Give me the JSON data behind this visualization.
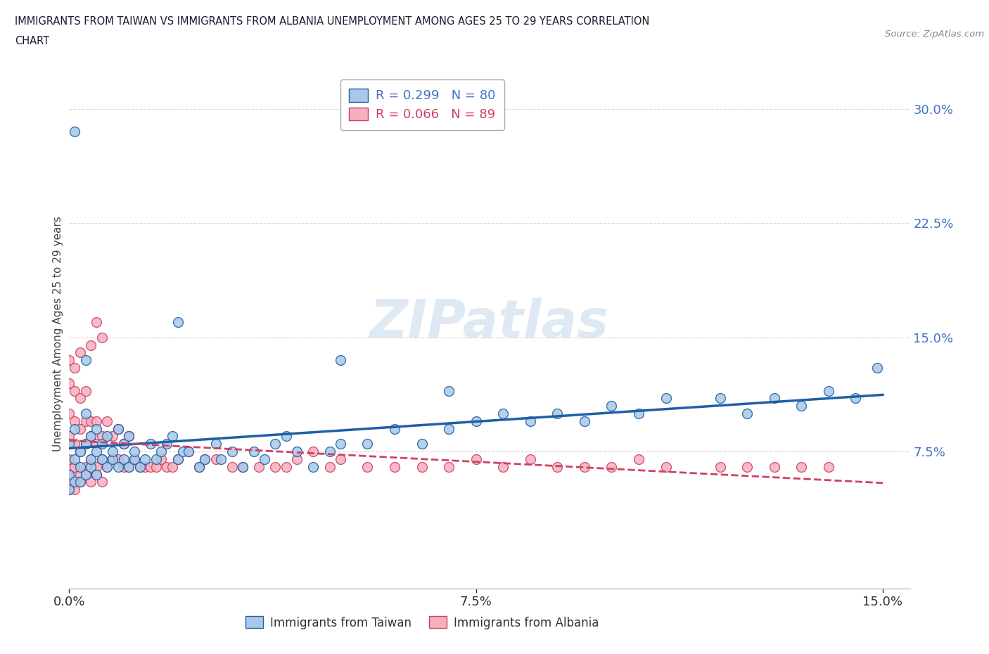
{
  "title_line1": "IMMIGRANTS FROM TAIWAN VS IMMIGRANTS FROM ALBANIA UNEMPLOYMENT AMONG AGES 25 TO 29 YEARS CORRELATION",
  "title_line2": "CHART",
  "source_text": "Source: ZipAtlas.com",
  "ylabel": "Unemployment Among Ages 25 to 29 years",
  "xlim": [
    0.0,
    0.155
  ],
  "ylim": [
    -0.015,
    0.32
  ],
  "xticks": [
    0.0,
    0.075,
    0.15
  ],
  "xtick_labels": [
    "0.0%",
    "7.5%",
    "15.0%"
  ],
  "ytick_positions": [
    0.075,
    0.15,
    0.225,
    0.3
  ],
  "ytick_labels": [
    "7.5%",
    "15.0%",
    "22.5%",
    "30.0%"
  ],
  "taiwan_R": 0.299,
  "taiwan_N": 80,
  "albania_R": 0.066,
  "albania_N": 89,
  "taiwan_color": "#a8c8e8",
  "taiwan_line_color": "#1f5fa6",
  "albania_color": "#f5b0c0",
  "albania_line_color": "#d04060",
  "watermark": "ZIPatlas",
  "taiwan_scatter_x": [
    0.0,
    0.0,
    0.0,
    0.001,
    0.001,
    0.001,
    0.002,
    0.002,
    0.002,
    0.003,
    0.003,
    0.003,
    0.004,
    0.004,
    0.004,
    0.005,
    0.005,
    0.005,
    0.006,
    0.006,
    0.007,
    0.007,
    0.008,
    0.008,
    0.009,
    0.009,
    0.01,
    0.01,
    0.011,
    0.011,
    0.012,
    0.012,
    0.013,
    0.014,
    0.015,
    0.016,
    0.017,
    0.018,
    0.019,
    0.02,
    0.021,
    0.022,
    0.024,
    0.025,
    0.027,
    0.028,
    0.03,
    0.032,
    0.034,
    0.036,
    0.038,
    0.04,
    0.042,
    0.045,
    0.048,
    0.05,
    0.055,
    0.06,
    0.065,
    0.07,
    0.075,
    0.08,
    0.085,
    0.09,
    0.095,
    0.1,
    0.105,
    0.11,
    0.12,
    0.125,
    0.13,
    0.135,
    0.14,
    0.145,
    0.149,
    0.001,
    0.003,
    0.02,
    0.05,
    0.07
  ],
  "taiwan_scatter_y": [
    0.06,
    0.08,
    0.05,
    0.07,
    0.09,
    0.055,
    0.065,
    0.075,
    0.055,
    0.06,
    0.08,
    0.1,
    0.065,
    0.085,
    0.07,
    0.075,
    0.09,
    0.06,
    0.07,
    0.08,
    0.065,
    0.085,
    0.07,
    0.075,
    0.065,
    0.09,
    0.07,
    0.08,
    0.065,
    0.085,
    0.07,
    0.075,
    0.065,
    0.07,
    0.08,
    0.07,
    0.075,
    0.08,
    0.085,
    0.07,
    0.075,
    0.075,
    0.065,
    0.07,
    0.08,
    0.07,
    0.075,
    0.065,
    0.075,
    0.07,
    0.08,
    0.085,
    0.075,
    0.065,
    0.075,
    0.08,
    0.08,
    0.09,
    0.08,
    0.09,
    0.095,
    0.1,
    0.095,
    0.1,
    0.095,
    0.105,
    0.1,
    0.11,
    0.11,
    0.1,
    0.11,
    0.105,
    0.115,
    0.11,
    0.13,
    0.285,
    0.135,
    0.16,
    0.135,
    0.115
  ],
  "albania_scatter_x": [
    0.0,
    0.0,
    0.0,
    0.0,
    0.0,
    0.0,
    0.001,
    0.001,
    0.001,
    0.001,
    0.001,
    0.002,
    0.002,
    0.002,
    0.002,
    0.002,
    0.003,
    0.003,
    0.003,
    0.003,
    0.004,
    0.004,
    0.004,
    0.004,
    0.005,
    0.005,
    0.005,
    0.005,
    0.006,
    0.006,
    0.006,
    0.007,
    0.007,
    0.008,
    0.008,
    0.009,
    0.009,
    0.01,
    0.01,
    0.011,
    0.011,
    0.012,
    0.013,
    0.014,
    0.015,
    0.016,
    0.017,
    0.018,
    0.019,
    0.02,
    0.022,
    0.024,
    0.025,
    0.027,
    0.03,
    0.032,
    0.035,
    0.038,
    0.04,
    0.042,
    0.045,
    0.048,
    0.05,
    0.055,
    0.06,
    0.065,
    0.07,
    0.075,
    0.08,
    0.085,
    0.09,
    0.095,
    0.1,
    0.105,
    0.11,
    0.12,
    0.125,
    0.13,
    0.135,
    0.14,
    0.0,
    0.001,
    0.002,
    0.003,
    0.004,
    0.005,
    0.006,
    0.0,
    0.001
  ],
  "albania_scatter_y": [
    0.055,
    0.07,
    0.085,
    0.1,
    0.12,
    0.135,
    0.065,
    0.08,
    0.095,
    0.115,
    0.13,
    0.06,
    0.075,
    0.09,
    0.11,
    0.14,
    0.065,
    0.08,
    0.095,
    0.115,
    0.07,
    0.085,
    0.095,
    0.145,
    0.065,
    0.08,
    0.095,
    0.16,
    0.07,
    0.085,
    0.15,
    0.065,
    0.095,
    0.07,
    0.085,
    0.07,
    0.09,
    0.065,
    0.08,
    0.065,
    0.085,
    0.07,
    0.065,
    0.065,
    0.065,
    0.065,
    0.07,
    0.065,
    0.065,
    0.07,
    0.075,
    0.065,
    0.07,
    0.07,
    0.065,
    0.065,
    0.065,
    0.065,
    0.065,
    0.07,
    0.075,
    0.065,
    0.07,
    0.065,
    0.065,
    0.065,
    0.065,
    0.07,
    0.065,
    0.07,
    0.065,
    0.065,
    0.065,
    0.07,
    0.065,
    0.065,
    0.065,
    0.065,
    0.065,
    0.065,
    0.06,
    0.065,
    0.055,
    0.06,
    0.055,
    0.06,
    0.055,
    0.05,
    0.05
  ]
}
